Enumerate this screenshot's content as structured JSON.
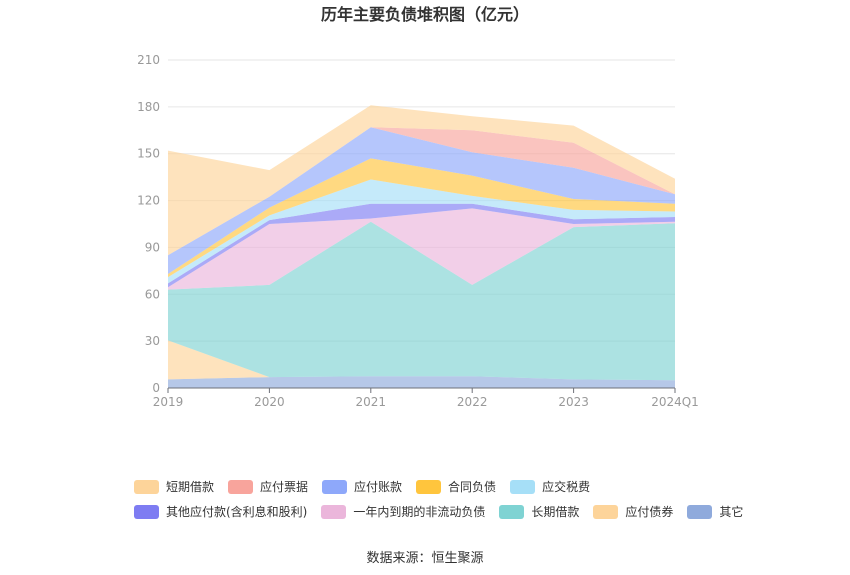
{
  "source_label": "数据来源：恒生聚源",
  "chart_data": {
    "type": "area",
    "stacked": true,
    "title": "历年主要负债堆积图（亿元）",
    "xlabel": "",
    "ylabel": "",
    "categories": [
      "2019",
      "2020",
      "2021",
      "2022",
      "2023",
      "2024Q1"
    ],
    "ylim": [
      0,
      210
    ],
    "yticks": [
      0,
      30,
      60,
      90,
      120,
      150,
      180,
      210
    ],
    "grid": true,
    "legend_position": "bottom",
    "series": [
      {
        "name": "其它",
        "color": "#8FAADC",
        "values": [
          5.5,
          7,
          7.5,
          7.5,
          5.5,
          5
        ]
      },
      {
        "name": "应付债券",
        "color": "#FDD49A",
        "values": [
          25,
          0,
          0,
          0,
          0,
          0
        ]
      },
      {
        "name": "长期借款",
        "color": "#7FD3D3",
        "values": [
          32.5,
          59,
          99,
          58.5,
          97.5,
          100.5
        ]
      },
      {
        "name": "一年内到期的非流动负债",
        "color": "#EBB6DB",
        "values": [
          1.5,
          39,
          2,
          49,
          2,
          1
        ]
      },
      {
        "name": "其他应付款(含利息和股利)",
        "color": "#7E7CF2",
        "values": [
          2.5,
          2.5,
          9.5,
          3,
          3,
          3
        ]
      },
      {
        "name": "应交税费",
        "color": "#A6DFF7",
        "values": [
          4,
          3,
          15.5,
          5,
          6,
          3.5
        ]
      },
      {
        "name": "合同负债",
        "color": "#FFC53D",
        "values": [
          2,
          5,
          13.5,
          13,
          7,
          5
        ]
      },
      {
        "name": "应付账款",
        "color": "#8EA8FA",
        "values": [
          12,
          7,
          20,
          15,
          20,
          6
        ]
      },
      {
        "name": "应付票据",
        "color": "#F8A49C",
        "values": [
          0,
          0,
          0,
          14,
          16,
          0
        ]
      },
      {
        "name": "短期借款",
        "color": "#FDD49A",
        "values": [
          67,
          17,
          14,
          9,
          11,
          10
        ]
      }
    ],
    "legend_rows": [
      [
        "短期借款",
        "应付票据",
        "应付账款",
        "合同负债",
        "应交税费"
      ],
      [
        "其他应付款(含利息和股利)",
        "一年内到期的非流动负债",
        "长期借款",
        "应付债券",
        "其它"
      ]
    ]
  }
}
